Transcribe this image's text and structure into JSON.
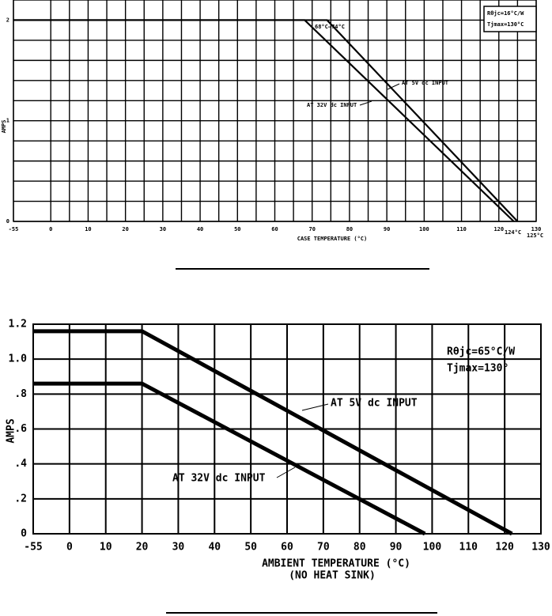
{
  "chart_data": [
    {
      "type": "line",
      "xlabel": "CASE TEMPERATURE (°C)",
      "ylabel": "AMPS",
      "xticks": [
        -55,
        0,
        10,
        20,
        30,
        40,
        50,
        60,
        70,
        80,
        90,
        100,
        110,
        120,
        130
      ],
      "x_minor_ticks": [
        5,
        15,
        25,
        35,
        45,
        55,
        65,
        75,
        85,
        95,
        105,
        115,
        125
      ],
      "ylim": [
        0,
        2.2
      ],
      "yticks": [
        0,
        1,
        2
      ],
      "y_minor_ticks": [
        0.2,
        0.4,
        0.6,
        0.8,
        1.2,
        1.4,
        1.6,
        1.8
      ],
      "grid": true,
      "series": [
        {
          "name": "AT 5V dc INPUT",
          "color": "#000000",
          "x": [
            -55,
            74,
            125
          ],
          "values": [
            2,
            2,
            0
          ]
        },
        {
          "name": "AT 32V dc INPUT",
          "color": "#000000",
          "x": [
            -55,
            68,
            124
          ],
          "values": [
            2,
            2,
            0
          ]
        }
      ],
      "annotations": [
        "68°C—74°C",
        "124°C",
        "125°C"
      ],
      "legend_box": [
        "Rθjc=16°C/W",
        "Tjmax=130°C"
      ]
    },
    {
      "type": "line",
      "xlabel": "AMBIENT TEMPERATURE (°C)",
      "xlabel_note": "(NO HEAT SINK)",
      "ylabel": "AMPS",
      "xticks": [
        -55,
        0,
        10,
        20,
        30,
        40,
        50,
        60,
        70,
        80,
        90,
        100,
        110,
        120,
        130
      ],
      "ylim": [
        0,
        1.2
      ],
      "yticks": [
        0,
        {
          "value": 0.2,
          "label": ".2"
        },
        {
          "value": 0.4,
          "label": ".4"
        },
        {
          "value": 0.6,
          "label": ".6"
        },
        {
          "value": 0.8,
          "label": ".8"
        },
        {
          "value": 1,
          "label": "1.0"
        },
        1.2
      ],
      "grid": true,
      "series": [
        {
          "name": "AT 5V dc INPUT",
          "color": "#000000",
          "x": [
            -55,
            20,
            122
          ],
          "values": [
            1.16,
            1.16,
            0
          ]
        },
        {
          "name": "AT 32V dc INPUT",
          "color": "#000000",
          "x": [
            -55,
            20,
            98
          ],
          "values": [
            0.86,
            0.86,
            0
          ]
        }
      ],
      "legend_box": [
        "Rθjc=65°C/W",
        "Tjmax=130°"
      ]
    }
  ]
}
